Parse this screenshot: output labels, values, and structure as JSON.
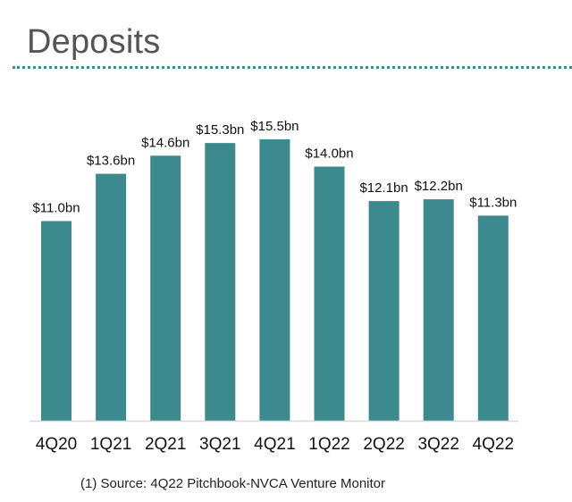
{
  "page": {
    "title": "Deposits",
    "footnote": "(1) Source: 4Q22 Pitchbook-NVCA Venture Monitor"
  },
  "chart_data": {
    "type": "bar",
    "title": "Deposits",
    "categories": [
      "4Q20",
      "1Q21",
      "2Q21",
      "3Q21",
      "4Q21",
      "1Q22",
      "2Q22",
      "3Q22",
      "4Q22"
    ],
    "values": [
      11.0,
      13.6,
      14.6,
      15.3,
      15.5,
      14.0,
      12.1,
      12.2,
      11.3
    ],
    "data_labels": [
      "$11.0bn",
      "$13.6bn",
      "$14.6bn",
      "$15.3bn",
      "$15.5bn",
      "$14.0bn",
      "$12.1bn",
      "$12.2bn",
      "$11.3bn"
    ],
    "unit": "$bn",
    "xlabel": "",
    "ylabel": "",
    "ylim": [
      0,
      15.5
    ],
    "grid": false,
    "legend": "none",
    "bar_color": "#3d8a8e",
    "axis_color": "#d9d9d9"
  }
}
